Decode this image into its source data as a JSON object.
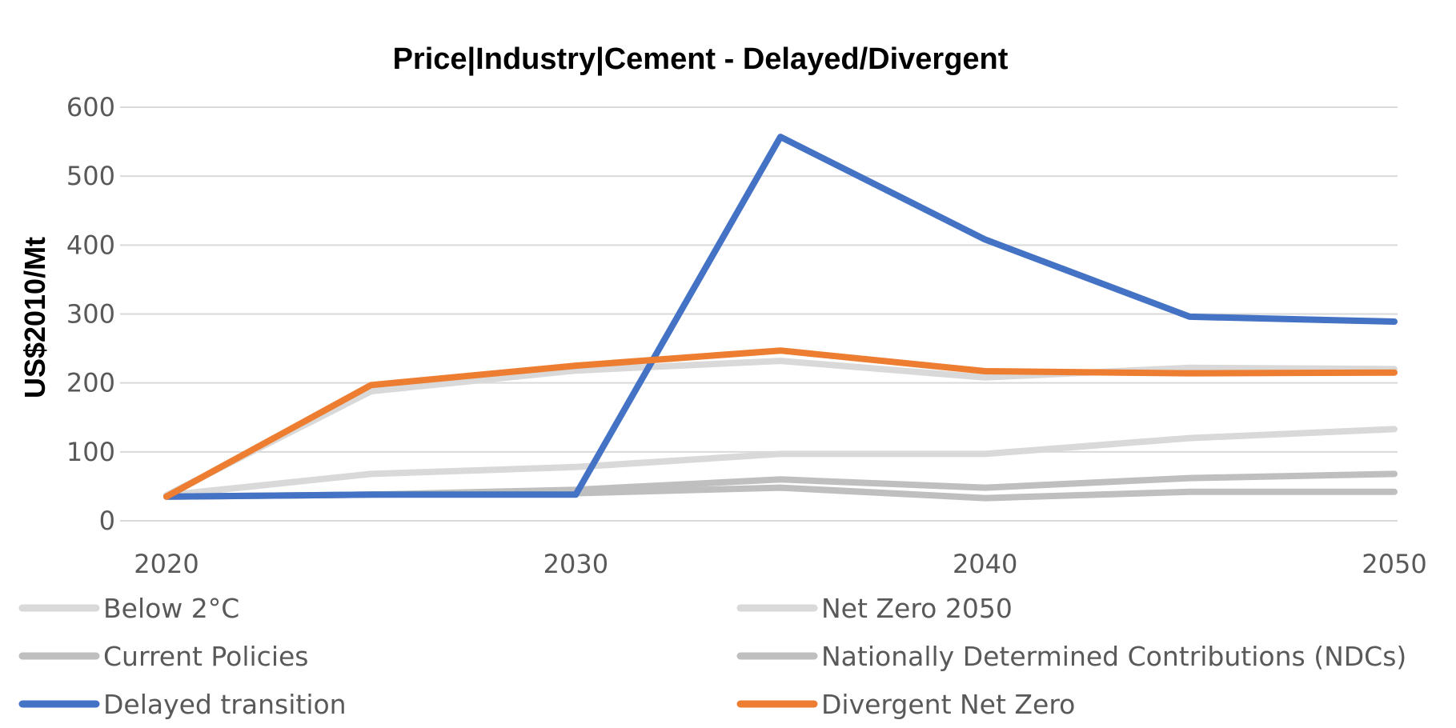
{
  "chart_data": {
    "type": "line",
    "title": "Price|Industry|Cement - Delayed/Divergent",
    "ylabel": "US$2010/Mt",
    "xlabel": "",
    "x": [
      2020,
      2025,
      2030,
      2035,
      2040,
      2045,
      2050
    ],
    "x_ticks": [
      2020,
      2030,
      2040,
      2050
    ],
    "y_ticks": [
      0,
      100,
      200,
      300,
      400,
      500,
      600
    ],
    "xlim": [
      2020,
      2050
    ],
    "ylim": [
      0,
      600
    ],
    "grid": "horizontal",
    "legend_position": "bottom",
    "series": [
      {
        "name": "Below 2°C",
        "color": "#d9d9d9",
        "values": [
          37,
          68,
          78,
          97,
          97,
          120,
          133
        ]
      },
      {
        "name": "Net Zero 2050",
        "color": "#d9d9d9",
        "values": [
          37,
          188,
          218,
          232,
          208,
          222,
          220
        ]
      },
      {
        "name": "Current Policies",
        "color": "#bfbfbf",
        "values": [
          35,
          38,
          40,
          48,
          33,
          42,
          42
        ]
      },
      {
        "name": "Nationally Determined Contributions (NDCs)",
        "color": "#bfbfbf",
        "values": [
          35,
          38,
          45,
          60,
          48,
          62,
          68
        ]
      },
      {
        "name": "Delayed transition",
        "color": "#4472c4",
        "values": [
          35,
          38,
          38,
          557,
          408,
          296,
          289
        ]
      },
      {
        "name": "Divergent Net Zero",
        "color": "#ed7d31",
        "values": [
          35,
          197,
          225,
          247,
          217,
          214,
          215
        ]
      }
    ]
  }
}
